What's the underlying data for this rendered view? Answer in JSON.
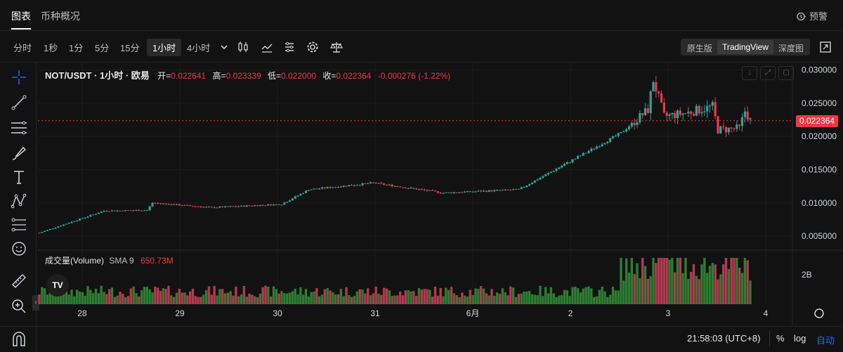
{
  "tabs": [
    {
      "label": "图表"
    },
    {
      "label": "币种概况"
    }
  ],
  "alert_label": "预警",
  "timeframes": [
    {
      "label": "分时"
    },
    {
      "label": "1秒"
    },
    {
      "label": "1分"
    },
    {
      "label": "5分"
    },
    {
      "label": "15分"
    },
    {
      "label": "1小时"
    },
    {
      "label": "4小时"
    }
  ],
  "active_timeframe": "1小时",
  "view_modes": [
    {
      "label": "原生版"
    },
    {
      "label": "TradingView"
    },
    {
      "label": "深度图"
    }
  ],
  "active_view": "TradingView",
  "legend": {
    "symbol": "NOT/USDT · 1小时 · 欧易",
    "open_label": "开=",
    "open": "0.022641",
    "high_label": "高=",
    "high": "0.023339",
    "low_label": "低=",
    "low": "0.022000",
    "close_label": "收=",
    "close": "0.022364",
    "change": "-0.000276 (-1.22%)"
  },
  "volume_legend": {
    "label": "成交量(Volume)",
    "sma": "SMA 9",
    "value": "650.73M"
  },
  "logo_text": "TV",
  "current_price": "0.022364",
  "price_axis": [
    "0.030000",
    "0.025000",
    "0.020000",
    "0.015000",
    "0.010000",
    "0.005000"
  ],
  "volume_axis": [
    "2B"
  ],
  "time_axis": [
    "28",
    "29",
    "30",
    "31",
    "6月",
    "2",
    "3",
    "4"
  ],
  "bottom": {
    "clock": "21:58:03 (UTC+8)",
    "percent": "%",
    "log": "log",
    "auto": "自动"
  },
  "colors": {
    "up": "#26a69a",
    "up_volume": "#2e7d32",
    "down": "#f23645",
    "down_volume": "#b23a4f",
    "accent": "#2962ff"
  },
  "chart_data": {
    "type": "candlestick",
    "series_name": "NOT/USDT",
    "ylim": [
      0.003,
      0.031
    ],
    "keypoints": [
      {
        "t": 0,
        "price": 0.0055
      },
      {
        "t": 24,
        "price": 0.0088
      },
      {
        "t": 40,
        "price": 0.0089
      },
      {
        "t": 42,
        "price": 0.01
      },
      {
        "t": 64,
        "price": 0.0093
      },
      {
        "t": 90,
        "price": 0.0098
      },
      {
        "t": 100,
        "price": 0.012
      },
      {
        "t": 124,
        "price": 0.013
      },
      {
        "t": 150,
        "price": 0.0115
      },
      {
        "t": 178,
        "price": 0.012
      },
      {
        "t": 196,
        "price": 0.016
      },
      {
        "t": 216,
        "price": 0.0205
      },
      {
        "t": 226,
        "price": 0.024
      },
      {
        "t": 228,
        "price": 0.0285
      },
      {
        "t": 232,
        "price": 0.023
      },
      {
        "t": 240,
        "price": 0.0235
      },
      {
        "t": 250,
        "price": 0.0245
      },
      {
        "t": 252,
        "price": 0.021
      },
      {
        "t": 260,
        "price": 0.0212
      },
      {
        "t": 262,
        "price": 0.0238
      },
      {
        "t": 264,
        "price": 0.0224
      }
    ]
  }
}
